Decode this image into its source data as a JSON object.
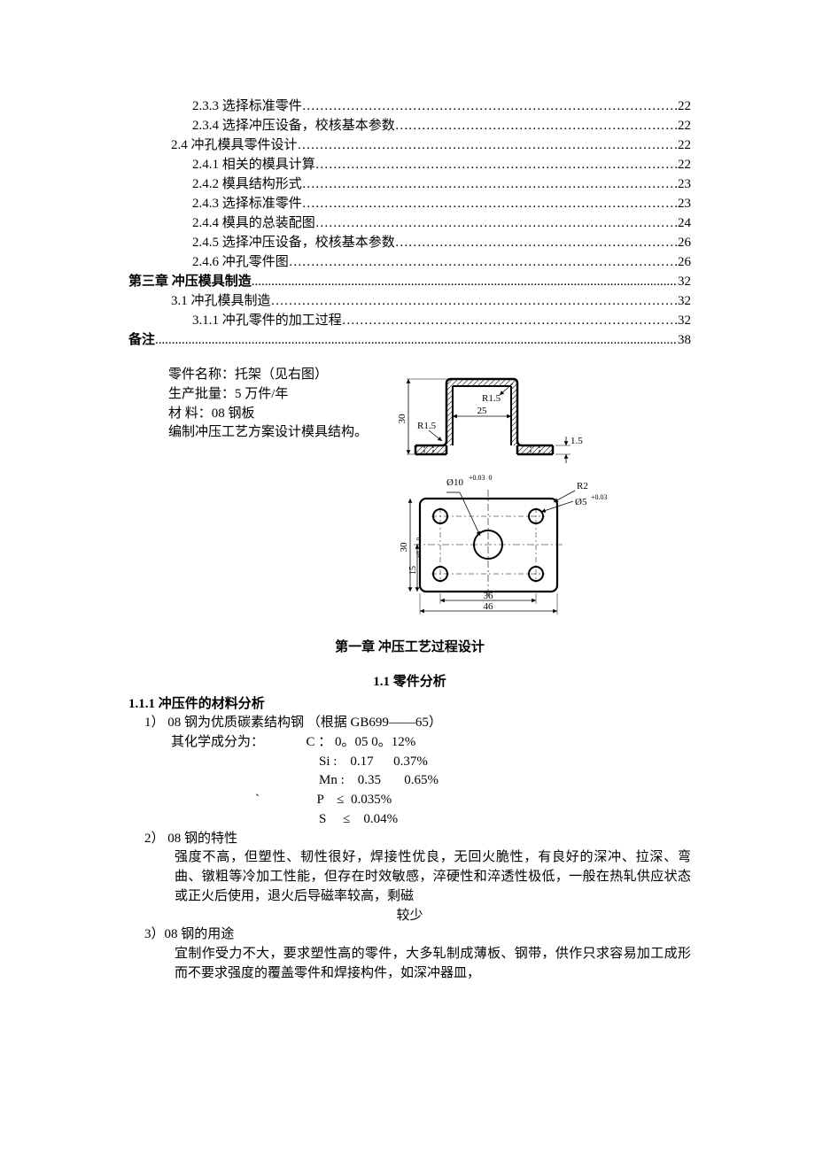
{
  "toc": [
    {
      "level": 2,
      "label": "2.3.3  选择标准零件",
      "fill": "…",
      "page": "22"
    },
    {
      "level": 2,
      "label": "2.3.4  选择冲压设备，校核基本参数",
      "fill": "…",
      "page": "22"
    },
    {
      "level": 1,
      "label": "2.4  冲孔模具零件设计",
      "fill": "…",
      "page": "22"
    },
    {
      "level": 2,
      "label": "2.4.1  相关的模具计算",
      "fill": "…",
      "page": "22"
    },
    {
      "level": 2,
      "label": "2.4.2  模具结构形式",
      "fill": "…",
      "page": "23"
    },
    {
      "level": 2,
      "label": "2.4.3 选择标准零件",
      "fill": "…",
      "page": "23"
    },
    {
      "level": 2,
      "label": "2.4.4  模具的总装配图",
      "fill": "…",
      "page": "24"
    },
    {
      "level": 2,
      "label": "2.4.5  选择冲压设备，校核基本参数",
      "fill": "…",
      "page": "26"
    },
    {
      "level": 2,
      "label": "2.4.6  冲孔零件图",
      "fill": "…",
      "page": "26"
    },
    {
      "level": 0,
      "label": "第三章     冲压模具制造",
      "fill": ".",
      "page": "32",
      "bold": true
    },
    {
      "level": 1,
      "label": "3.1  冲孔模具制造",
      "fill": "…",
      "page": "32"
    },
    {
      "level": 2,
      "label": "3.1.1  冲孔零件的加工过程",
      "fill": "…",
      "page": "32"
    },
    {
      "level": 0,
      "label": "备注",
      "fill": ".",
      "page": "38",
      "bold": true
    }
  ],
  "part": {
    "name_line": "零件名称：托架（见右图）",
    "batch_line": "生产批量：5 万件/年",
    "material_line": "材        料：08 钢板",
    "task_line": "编制冲压工艺方案设计模具结构。"
  },
  "drawing": {
    "dim30": "30",
    "r15a": "R1.5",
    "r15b": "R1.5",
    "dim25": "25",
    "dim15": "1.5",
    "phi10": "Ø10",
    "tol10": "+0.03\n 0",
    "r2": "R2",
    "phi5": "Ø5",
    "tol5": "+0.03\n 0",
    "dim30b": "30",
    "dim15b": "15",
    "tol15": "+0.12\n 0",
    "dim36": "36",
    "dim46": "46",
    "hatch_color": "#000000",
    "line_color": "#000000",
    "bg": "#ffffff"
  },
  "chapter1_title": "第一章    冲压工艺过程设计",
  "section11_title": "1.1 零件分析",
  "subsection111_title": "1.1.1  冲压件的材料分析",
  "item1_line1": "1）  08 钢为优质碳素结构钢       （根据 GB699——65）",
  "item1_line2": "其化学成分为：",
  "chem": {
    "c": "C  ：  0。05    0。12%",
    "si": "Si :    0.17      0.37%",
    "mn": "Mn :    0.35       0.65%",
    "p": "P    ≤  0.035%",
    "s": "S     ≤    0.04%"
  },
  "backtick": "`",
  "item2_head": "2）  08 钢的特性",
  "item2_body": "强度不高，但塑性、韧性很好，焊接性优良，无回火脆性，有良好的深冲、拉深、弯曲、镦粗等冷加工性能，但存在时效敏感，淬硬性和淬透性极低，一般在热轧供应状态或正火后使用，退火后导磁率较高，剩磁",
  "item2_tail": "较少",
  "item3_head": "3）08 钢的用途",
  "item3_body": "宜制作受力不大，要求塑性高的零件，大多轧制成薄板、钢带，供作只求容易加工成形而不要求强度的覆盖零件和焊接构件，如深冲器皿，"
}
